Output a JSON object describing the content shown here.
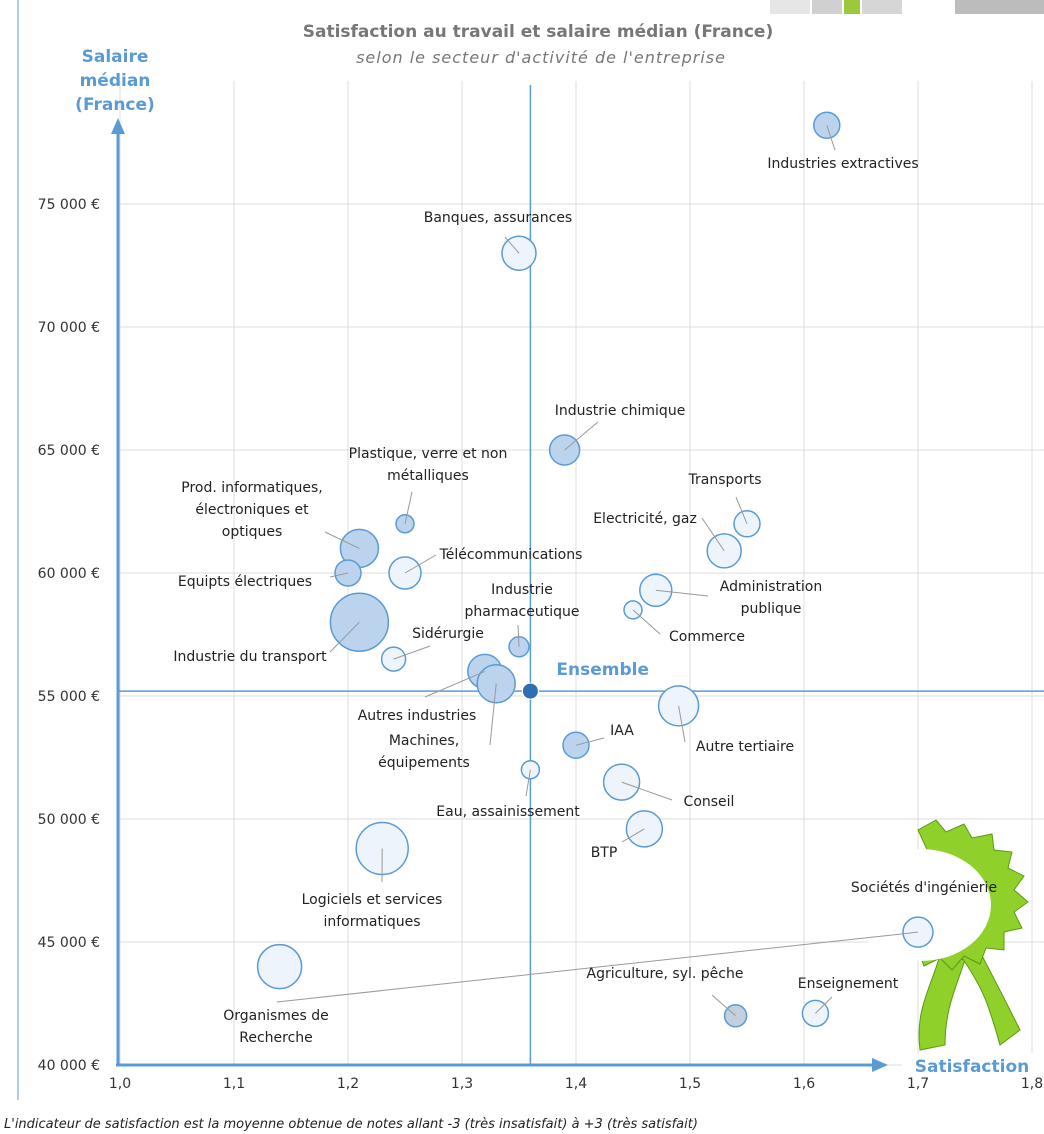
{
  "chart_data": {
    "type": "bubble",
    "title": "Satisfaction au travail et salaire médian (France)",
    "subtitle": "selon le secteur d'activité de l'entreprise",
    "y_label": [
      "Salaire",
      "médian",
      "(France)"
    ],
    "x_label": "Satisfaction",
    "note": "L'indicateur de satisfaction est la moyenne obtenue de notes allant -3 (très insatisfait) à +3 (très satisfait)",
    "xlim": [
      1.0,
      1.8
    ],
    "ylim": [
      40000,
      80000
    ],
    "xticks": [
      {
        "value": 1.0,
        "label": "1,0"
      },
      {
        "value": 1.1,
        "label": "1,1"
      },
      {
        "value": 1.2,
        "label": "1,2"
      },
      {
        "value": 1.3,
        "label": "1,3"
      },
      {
        "value": 1.4,
        "label": "1,4"
      },
      {
        "value": 1.5,
        "label": "1,5"
      },
      {
        "value": 1.6,
        "label": "1,6"
      },
      {
        "value": 1.7,
        "label": "1,7"
      },
      {
        "value": 1.8,
        "label": "1,8"
      }
    ],
    "yticks": [
      {
        "value": 40000,
        "label": "40 000 €"
      },
      {
        "value": 45000,
        "label": "45 000 €"
      },
      {
        "value": 50000,
        "label": "50 000 €"
      },
      {
        "value": 55000,
        "label": "55 000 €"
      },
      {
        "value": 60000,
        "label": "60 000 €"
      },
      {
        "value": 65000,
        "label": "65 000 €"
      },
      {
        "value": 70000,
        "label": "70 000 €"
      },
      {
        "value": 75000,
        "label": "75 000 €"
      }
    ],
    "grid": true,
    "stroke": "#5b9bd5",
    "reference": {
      "label": "Ensemble",
      "x": 1.36,
      "y": 55200,
      "color": "#2f6db5"
    },
    "labels": [
      [
        "Industries extractives"
      ],
      [
        "Banques, assurances"
      ],
      [
        "Industrie chimique"
      ],
      [
        "Plastique, verre et non",
        "métalliques"
      ],
      [
        "Prod. informatiques,",
        "électroniques et",
        "optiques"
      ],
      [
        "Télécommunications"
      ],
      [
        "Equipts électriques"
      ],
      [
        "Industrie du transport"
      ],
      [
        "Sidérurgie"
      ],
      [
        "Industrie",
        "pharmaceutique"
      ],
      [
        "Autres industries"
      ],
      [
        "Machines,",
        "équipements"
      ],
      [
        "Transports"
      ],
      [
        "Electricité, gaz"
      ],
      [
        "Administration",
        "publique"
      ],
      [
        "Commerce"
      ],
      [
        "IAA"
      ],
      [
        "Autre tertiaire"
      ],
      [
        "Eau, assainissement"
      ],
      [
        "Conseil"
      ],
      [
        "BTP"
      ],
      [
        "Logiciels et services",
        "informatiques"
      ],
      [
        "Sociétés d'ingénierie"
      ],
      [
        "Organismes de",
        "Recherche"
      ],
      [
        "Enseignement"
      ],
      [
        "Agriculture, syl. pêche"
      ]
    ],
    "x": [
      1.62,
      1.35,
      1.39,
      1.25,
      1.21,
      1.25,
      1.2,
      1.21,
      1.24,
      1.35,
      1.32,
      1.33,
      1.55,
      1.53,
      1.47,
      1.45,
      1.4,
      1.49,
      1.36,
      1.44,
      1.46,
      1.23,
      1.14,
      1.7,
      1.61,
      1.54
    ],
    "y": [
      78200,
      73000,
      65000,
      62000,
      61000,
      60000,
      60000,
      58000,
      56500,
      57000,
      56000,
      55500,
      62000,
      60900,
      59300,
      58500,
      53000,
      54600,
      52000,
      51500,
      49600,
      48800,
      44000,
      45400,
      42100,
      42000
    ],
    "sizes": [
      13,
      17,
      15,
      9,
      19,
      16,
      13,
      29,
      12,
      10,
      17,
      19,
      13,
      17,
      16,
      9,
      13,
      20,
      9,
      18,
      18,
      26,
      22,
      15,
      13,
      11
    ],
    "colors": [
      "#bcd3ee",
      "#eef4fb",
      "#bcd3ee",
      "#bcd3ee",
      "#bcd3ee",
      "#eef4fb",
      "#bcd3ee",
      "#bcd3ee",
      "#eef4fb",
      "#bcd3ee",
      "#bcd3ee",
      "#bcd3ee",
      "#eef4fb",
      "#eef4fb",
      "#eef4fb",
      "#eef4fb",
      "#bcd3ee",
      "#eef4fb",
      "#eef4fb",
      "#eef4fb",
      "#eef4fb",
      "#eef4fb",
      "#eef4fb",
      "#eef4fb",
      "#eef4fb",
      "#c3cfdc"
    ]
  }
}
